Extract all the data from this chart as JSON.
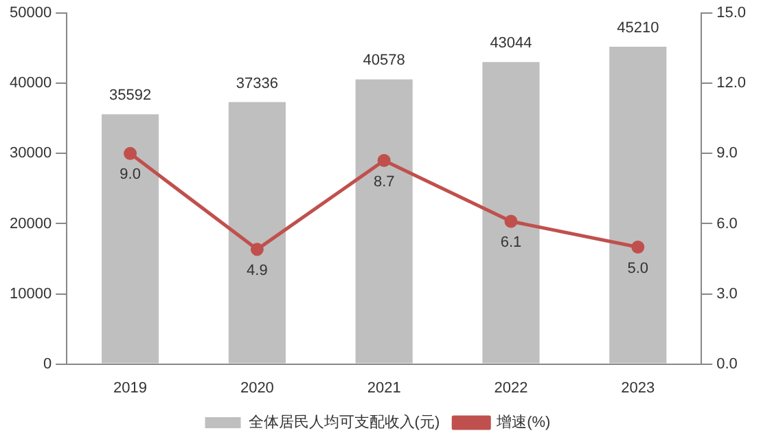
{
  "chart_data": {
    "type": "bar",
    "categories": [
      "2019",
      "2020",
      "2021",
      "2022",
      "2023"
    ],
    "series": [
      {
        "name": "全体居民人均可支配收入(元)",
        "color": "#bfbfbf",
        "values": [
          35592,
          37336,
          40578,
          43044,
          45210
        ],
        "value_labels": [
          "35592",
          "37336",
          "40578",
          "43044",
          "45210"
        ]
      },
      {
        "name": "增速(%)",
        "type": "line",
        "axis": "y2",
        "color": "#c0504d",
        "marker": "circle",
        "values": [
          9.0,
          4.9,
          8.7,
          6.1,
          5.0
        ],
        "value_labels": [
          "9.0",
          "4.9",
          "8.7",
          "6.1",
          "5.0"
        ]
      }
    ],
    "ylim": [
      0,
      50000
    ],
    "yticks": [
      0,
      10000,
      20000,
      30000,
      40000,
      50000
    ],
    "y2lim": [
      0,
      15
    ],
    "y2ticks": [
      {
        "value": 0,
        "label": "0.0"
      },
      {
        "value": 3,
        "label": "3.0"
      },
      {
        "value": 6,
        "label": "6.0"
      },
      {
        "value": 9,
        "label": "9.0"
      },
      {
        "value": 12,
        "label": "12.0"
      },
      {
        "value": 15,
        "label": "15.0"
      }
    ],
    "grid": false,
    "legend": "bottom"
  }
}
